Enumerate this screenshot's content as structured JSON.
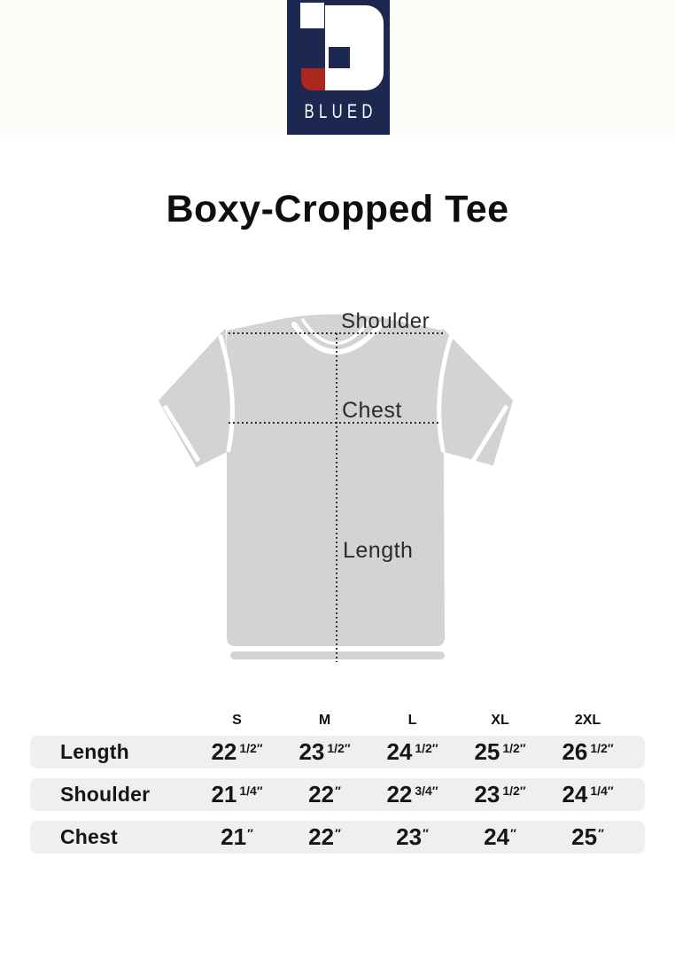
{
  "brand": {
    "name": "BLUED",
    "colors": {
      "navy": "#1c2850",
      "red": "#ac271e",
      "white": "#ffffff"
    }
  },
  "title": "Boxy-Cropped Tee",
  "diagram": {
    "garment": "t-shirt",
    "shirt_color": "#d3d3d5",
    "labels": {
      "shoulder": "Shoulder",
      "chest": "Chest",
      "length": "Length"
    }
  },
  "size_chart": {
    "unit": "″",
    "columns": [
      "S",
      "M",
      "L",
      "XL",
      "2XL"
    ],
    "rows": [
      {
        "label": "Length",
        "values": [
          "22 1/2",
          "23 1/2",
          "24 1/2",
          "25 1/2",
          "26 1/2"
        ]
      },
      {
        "label": "Shoulder",
        "values": [
          "21 1/4",
          "22",
          "22 3/4",
          "23 1/2",
          "24 1/4"
        ]
      },
      {
        "label": "Chest",
        "values": [
          "21",
          "22",
          "23",
          "24",
          "25"
        ]
      }
    ]
  }
}
